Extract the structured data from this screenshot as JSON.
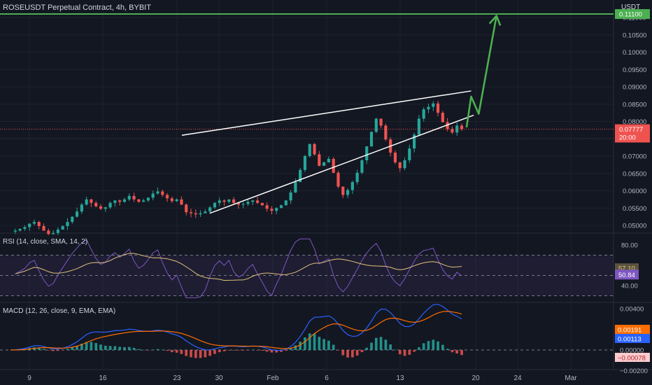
{
  "header": {
    "title": "ROSEUSDT Perpetual Contract, 4h, BYBIT",
    "currency": "USDT"
  },
  "colors": {
    "background": "#131722",
    "up": "#26a69a",
    "down": "#ef5350",
    "grid": "#1e222d",
    "axis_text": "#b2b5be",
    "arrow": "#4caf50",
    "wedge": "#ffffff",
    "rsi_line": "#7e57c2",
    "rsi_sma": "#e3c27a",
    "macd_line": "#2962ff",
    "macd_signal": "#ff6d00"
  },
  "chart_data": [
    {
      "type": "candlestick",
      "title": "ROSEUSDT Perpetual Contract, 4h, BYBIT",
      "x_ticks": [
        "9",
        "16",
        "23",
        "30",
        "Feb",
        "6",
        "13",
        "20",
        "24",
        "Mar"
      ],
      "y_ticks": [
        "0.11000",
        "0.10500",
        "0.10000",
        "0.09500",
        "0.09000",
        "0.08500",
        "0.08000",
        "0.07500",
        "0.07000",
        "0.06500",
        "0.06000",
        "0.05500",
        "0.05000"
      ],
      "ylim": [
        0.0485,
        0.1145
      ],
      "last_price": "0.07777",
      "countdown": "20:00",
      "resistance_level": 0.111,
      "resistance_label": "0.11100",
      "pattern": "rising wedge",
      "price_path": [
        0.0482,
        0.0485,
        0.049,
        0.0495,
        0.0505,
        0.051,
        0.0498,
        0.0485,
        0.0475,
        0.0478,
        0.0488,
        0.0498,
        0.051,
        0.0525,
        0.054,
        0.056,
        0.0575,
        0.0565,
        0.0555,
        0.0548,
        0.0552,
        0.0565,
        0.0572,
        0.0568,
        0.0575,
        0.0585,
        0.0575,
        0.0568,
        0.0572,
        0.058,
        0.0592,
        0.0598,
        0.0588,
        0.0578,
        0.057,
        0.0575,
        0.056,
        0.0538,
        0.0535,
        0.0532,
        0.0535,
        0.054,
        0.0552,
        0.0565,
        0.0572,
        0.0568,
        0.0575,
        0.0565,
        0.056,
        0.0562,
        0.0568,
        0.0572,
        0.0565,
        0.0558,
        0.0548,
        0.0542,
        0.055,
        0.0558,
        0.0572,
        0.0595,
        0.0625,
        0.066,
        0.07,
        0.0735,
        0.0705,
        0.0672,
        0.0682,
        0.0692,
        0.0652,
        0.0612,
        0.0588,
        0.0602,
        0.0625,
        0.0652,
        0.0688,
        0.0728,
        0.077,
        0.0808,
        0.0788,
        0.0748,
        0.071,
        0.0682,
        0.0665,
        0.0688,
        0.0722,
        0.0762,
        0.0808,
        0.0835,
        0.0842,
        0.0852,
        0.0825,
        0.0798,
        0.0778,
        0.0768,
        0.0788,
        0.0778
      ],
      "wedge_upper": [
        [
          6.2,
          0.076
        ],
        [
          17.6,
          0.0888
        ]
      ],
      "wedge_lower": [
        [
          7.3,
          0.0535
        ],
        [
          17.7,
          0.0818
        ]
      ],
      "projection": [
        [
          17.42,
          0.0783
        ],
        [
          17.6,
          0.0872
        ],
        [
          17.9,
          0.0822
        ],
        [
          18.6,
          0.1105
        ]
      ]
    },
    {
      "type": "line",
      "title": "RSI (14, close, SMA, 14, 2)",
      "y_ticks": [
        "80.00",
        "40.00"
      ],
      "levels": [
        70,
        50,
        30
      ],
      "ylim": [
        20,
        90
      ],
      "series": [
        {
          "name": "RSI",
          "last": "50.84"
        },
        {
          "name": "RSI SMA",
          "last": "57.10"
        }
      ]
    },
    {
      "type": "line",
      "title": "MACD (12, 26, close, 9, EMA, EMA)",
      "y_ticks": [
        "0.00400",
        "0.00200",
        "0.00000",
        "−0.00200"
      ],
      "ylim": [
        -0.0022,
        0.0049
      ],
      "series": [
        {
          "name": "MACD",
          "last": "0.00113"
        },
        {
          "name": "Signal",
          "last": "0.00191"
        },
        {
          "name": "Histogram",
          "last": "−0.00078"
        }
      ]
    }
  ]
}
